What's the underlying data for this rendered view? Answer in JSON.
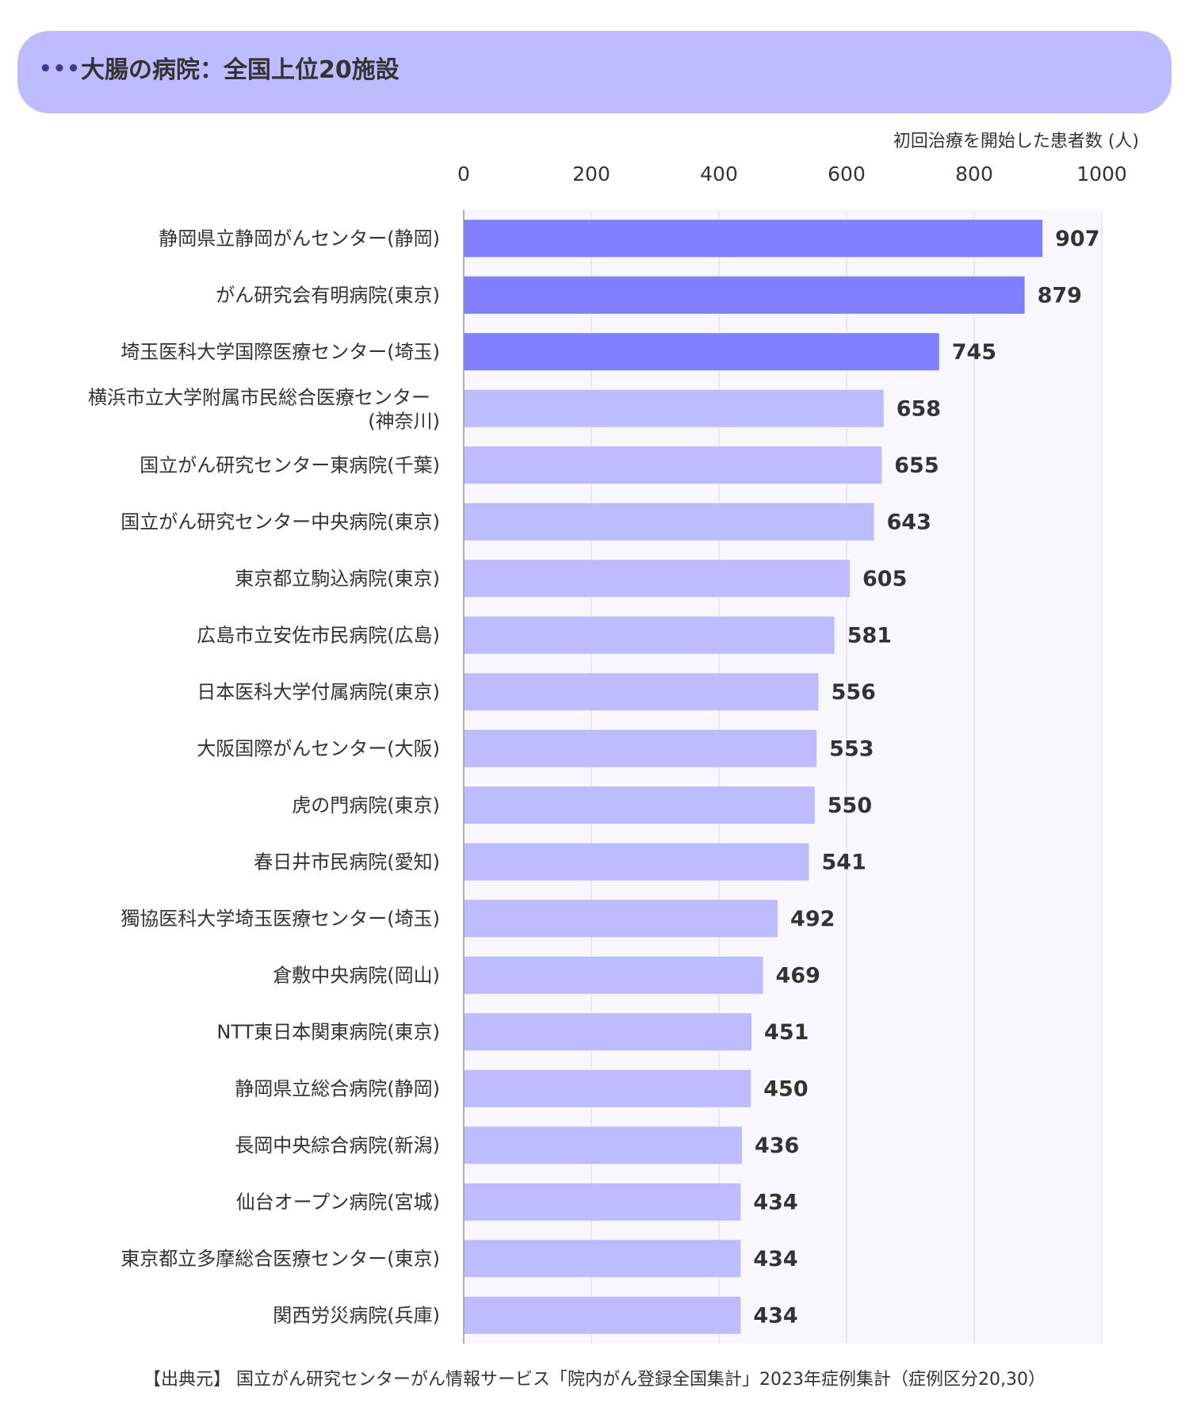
{
  "header": {
    "dots": "•••",
    "title": "大腸の病院：全国上位20施設"
  },
  "chart_data": {
    "type": "bar",
    "orientation": "horizontal",
    "xlabel": "初回治療を開始した患者数 (人)",
    "xlim": [
      0,
      1000
    ],
    "xticks": [
      0,
      200,
      400,
      600,
      800,
      1000
    ],
    "grid": true,
    "categories": [
      "静岡県立静岡がんセンター(静岡)",
      "がん研究会有明病院(東京)",
      "埼玉医科大学国際医療センター(埼玉)",
      "横浜市立大学附属市民総合医療センター\n(神奈川)",
      "国立がん研究センター東病院(千葉)",
      "国立がん研究センター中央病院(東京)",
      "東京都立駒込病院(東京)",
      "広島市立安佐市民病院(広島)",
      "日本医科大学付属病院(東京)",
      "大阪国際がんセンター(大阪)",
      "虎の門病院(東京)",
      "春日井市民病院(愛知)",
      "獨協医科大学埼玉医療センター(埼玉)",
      "倉敷中央病院(岡山)",
      "NTT東日本関東病院(東京)",
      "静岡県立総合病院(静岡)",
      "長岡中央綜合病院(新潟)",
      "仙台オープン病院(宮城)",
      "東京都立多摩総合医療センター(東京)",
      "関西労災病院(兵庫)"
    ],
    "values": [
      907,
      879,
      745,
      658,
      655,
      643,
      605,
      581,
      556,
      553,
      550,
      541,
      492,
      469,
      451,
      450,
      436,
      434,
      434,
      434
    ],
    "highlight_count": 3,
    "colors": {
      "highlight": "#7f7fff",
      "bar": "#bcbcff",
      "plot_bg": "#f7f7fd",
      "grid": "#dcdce6",
      "axis": "#999999",
      "text": "#333333"
    }
  },
  "source": "【出典元】 国立がん研究センターがん情報サービス「院内がん登録全国集計」2023年症例集計（症例区分20,30）"
}
